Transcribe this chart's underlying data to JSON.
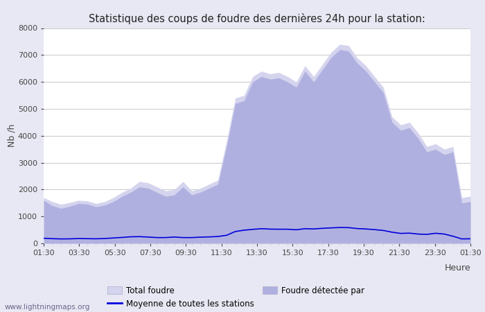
{
  "title": "Statistique des coups de foudre des dernières 24h pour la station:",
  "xlabel": "Heure",
  "ylabel": "Nb /h",
  "watermark": "www.lightningmaps.org",
  "legend": {
    "total_foudre_label": "Total foudre",
    "foudre_detectee_label": "Foudre détectée par",
    "moyenne_label": "Moyenne de toutes les stations"
  },
  "x_ticks": [
    "01:30",
    "03:30",
    "05:30",
    "07:30",
    "09:30",
    "11:30",
    "13:30",
    "15:30",
    "17:30",
    "19:30",
    "21:30",
    "23:30",
    "01:30"
  ],
  "ylim": [
    0,
    8000
  ],
  "yticks": [
    0,
    1000,
    2000,
    3000,
    4000,
    5000,
    6000,
    7000,
    8000
  ],
  "bg_color": "#e8e8f4",
  "plot_bg_color": "#ffffff",
  "total_foudre_color": "#d4d4ee",
  "foudre_detectee_color": "#b0b0e0",
  "moyenne_color": "#0000dd",
  "grid_color": "#c8c8c8",
  "tick_color": "#444444",
  "title_color": "#222222",
  "total_foudre_data": [
    1700,
    1550,
    1450,
    1520,
    1600,
    1580,
    1480,
    1550,
    1700,
    1900,
    2050,
    2300,
    2250,
    2100,
    1950,
    2000,
    2300,
    1950,
    2050,
    2200,
    2350,
    3800,
    5400,
    5500,
    6200,
    6400,
    6300,
    6350,
    6200,
    6000,
    6600,
    6200,
    6650,
    7100,
    7400,
    7350,
    6900,
    6600,
    6200,
    5800,
    4700,
    4400,
    4500,
    4100,
    3600,
    3700,
    3500,
    3600,
    1700,
    1750
  ],
  "foudre_detectee_data": [
    1600,
    1400,
    1300,
    1380,
    1480,
    1460,
    1360,
    1420,
    1550,
    1750,
    1900,
    2100,
    2050,
    1900,
    1750,
    1800,
    2100,
    1800,
    1900,
    2050,
    2200,
    3600,
    5200,
    5300,
    6000,
    6200,
    6100,
    6150,
    6000,
    5800,
    6400,
    6000,
    6450,
    6900,
    7200,
    7150,
    6700,
    6400,
    6000,
    5600,
    4500,
    4200,
    4300,
    3900,
    3400,
    3500,
    3300,
    3400,
    1500,
    1550
  ],
  "moyenne_data": [
    190,
    175,
    165,
    168,
    180,
    175,
    170,
    180,
    200,
    220,
    245,
    250,
    235,
    215,
    215,
    235,
    215,
    215,
    230,
    240,
    255,
    300,
    440,
    490,
    520,
    545,
    530,
    525,
    525,
    505,
    545,
    535,
    560,
    575,
    590,
    585,
    550,
    535,
    510,
    480,
    415,
    370,
    380,
    345,
    335,
    375,
    345,
    265,
    165,
    170
  ]
}
